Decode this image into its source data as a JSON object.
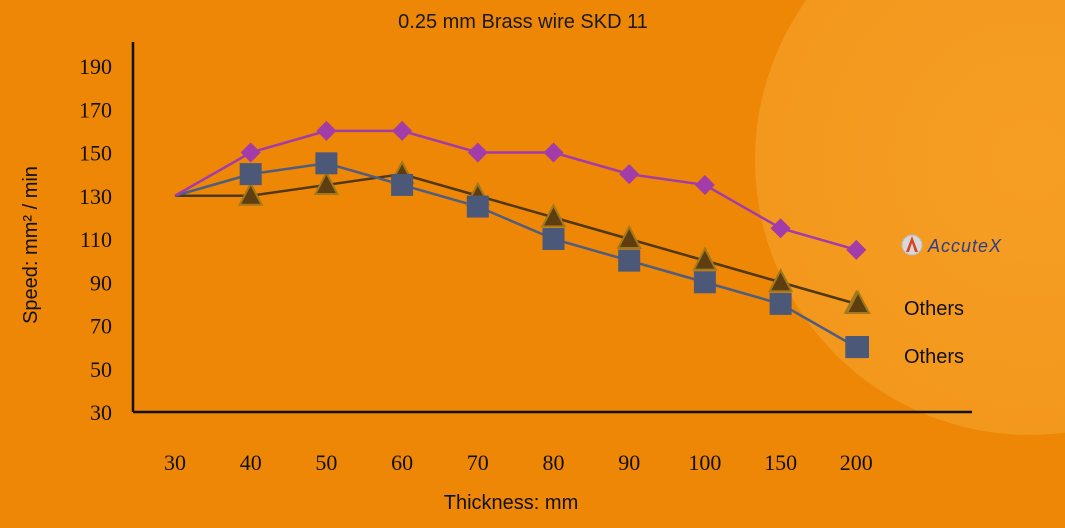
{
  "chart_data": {
    "type": "line",
    "title": "0.25 mm Brass wire SKD 11",
    "xlabel": "Thickness: mm",
    "ylabel": "Speed: mm² / min",
    "categories": [
      "30",
      "40",
      "50",
      "60",
      "70",
      "80",
      "90",
      "100",
      "150",
      "200"
    ],
    "ylim": [
      30,
      190
    ],
    "yticks": [
      30,
      50,
      70,
      90,
      110,
      130,
      150,
      170,
      190
    ],
    "grid": false,
    "series": [
      {
        "name": "AccuteX",
        "marker": "diamond",
        "color": "#a23ca8",
        "line_color": "#a23ca8",
        "values": [
          130,
          150,
          160,
          160,
          150,
          150,
          140,
          135,
          115,
          105
        ]
      },
      {
        "name": "Others",
        "marker": "triangle",
        "color": "#5e3d10",
        "line_color": "#4f3812",
        "values": [
          130,
          130,
          135,
          140,
          130,
          120,
          110,
          100,
          90,
          80
        ]
      },
      {
        "name": "Others",
        "marker": "square",
        "color": "#4b5878",
        "line_color": "#4f5d7e",
        "values": [
          130,
          140,
          145,
          135,
          125,
          110,
          100,
          90,
          80,
          60
        ]
      }
    ],
    "legend_position": "right"
  },
  "legend_labels": {
    "accutex_logo_text": "AccuteX"
  }
}
